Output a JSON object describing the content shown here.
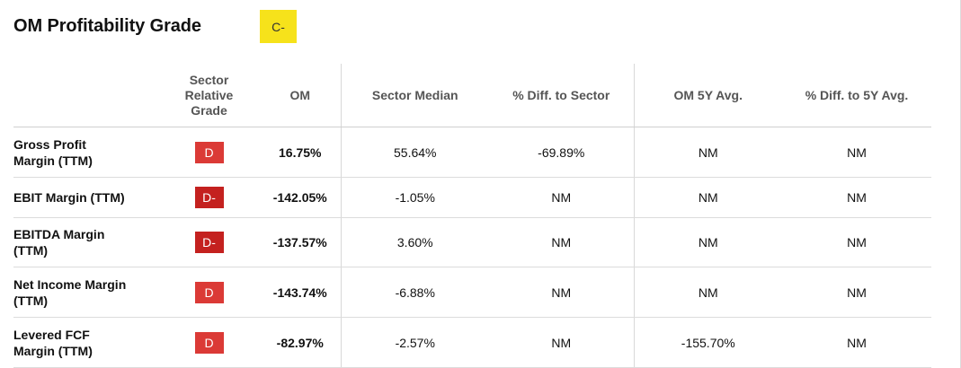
{
  "title": "OM Profitability Grade",
  "overall_grade": "C-",
  "colors": {
    "overall_grade_bg": "#f6e21b",
    "grade_D": "#db3a36",
    "grade_D_minus": "#c4211f"
  },
  "columns": {
    "metric": "",
    "sector_relative_grade": [
      "Sector",
      "Relative",
      "Grade"
    ],
    "om": "OM",
    "sector_median": "Sector Median",
    "diff_to_sector": "% Diff. to Sector",
    "om_5y_avg": "OM 5Y Avg.",
    "diff_to_5y_avg": "% Diff. to 5Y Avg."
  },
  "rows": [
    {
      "metric": [
        "Gross Profit",
        "Margin (TTM)"
      ],
      "grade": "D",
      "om": "16.75%",
      "sector_median": "55.64%",
      "diff_to_sector": "-69.89%",
      "om_5y_avg": "NM",
      "diff_to_5y_avg": "NM"
    },
    {
      "metric": [
        "EBIT Margin (TTM)"
      ],
      "grade": "D-",
      "om": "-142.05%",
      "sector_median": "-1.05%",
      "diff_to_sector": "NM",
      "om_5y_avg": "NM",
      "diff_to_5y_avg": "NM"
    },
    {
      "metric": [
        "EBITDA Margin",
        "(TTM)"
      ],
      "grade": "D-",
      "om": "-137.57%",
      "sector_median": "3.60%",
      "diff_to_sector": "NM",
      "om_5y_avg": "NM",
      "diff_to_5y_avg": "NM"
    },
    {
      "metric": [
        "Net Income Margin",
        "(TTM)"
      ],
      "grade": "D",
      "om": "-143.74%",
      "sector_median": "-6.88%",
      "diff_to_sector": "NM",
      "om_5y_avg": "NM",
      "diff_to_5y_avg": "NM"
    },
    {
      "metric": [
        "Levered FCF",
        "Margin (TTM)"
      ],
      "grade": "D",
      "om": "-82.97%",
      "sector_median": "-2.57%",
      "diff_to_sector": "NM",
      "om_5y_avg": "-155.70%",
      "diff_to_5y_avg": "NM"
    }
  ]
}
